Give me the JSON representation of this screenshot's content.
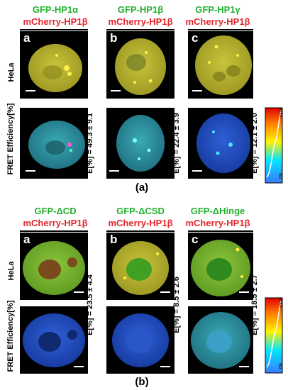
{
  "figure": {
    "part_a": {
      "label": "(a)",
      "cell_line": "HeLa",
      "fret_label": "FRET Efficiency[%]",
      "columns": [
        {
          "letter": "a",
          "donor": "GFP-HP1α",
          "acceptor": "mCherry-HP1β",
          "efficiency": "E[%] = 49.3 ± 9.1"
        },
        {
          "letter": "b",
          "donor": "GFP-HP1β",
          "acceptor": "mCherry-HP1β",
          "efficiency": "E[%] = 22.4 ± 3.9"
        },
        {
          "letter": "c",
          "donor": "GFP-HP1γ",
          "acceptor": "mCherry-HP1β",
          "efficiency": "E[%] = 12.1 ± 2.0"
        }
      ],
      "colorbar": {
        "max": "100%",
        "min": "0%"
      }
    },
    "part_b": {
      "label": "(b)",
      "cell_line": "HeLa",
      "fret_label": "FRET Efficiency[%]",
      "columns": [
        {
          "letter": "a",
          "donor": "GFP-ΔCD",
          "acceptor": "mCherry-HP1β",
          "efficiency": "E[%] = 23.5 ± 4.4"
        },
        {
          "letter": "b",
          "donor": "GFP-ΔCSD",
          "acceptor": "mCherry-HP1β",
          "efficiency": "E[%] = 8.5 ± 2.6"
        },
        {
          "letter": "c",
          "donor": "GFP-ΔHinge",
          "acceptor": "mCherry-HP1β",
          "efficiency": "E[%] = 18.5 ± 2.7"
        }
      ],
      "colorbar": {
        "max": "100%",
        "min": "0%"
      }
    },
    "colors": {
      "green_label": "#22b22e",
      "red_label": "#e3262c"
    }
  }
}
